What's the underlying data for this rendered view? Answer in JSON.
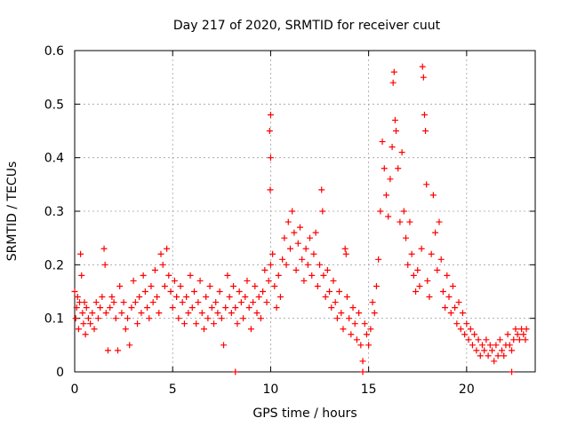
{
  "chart_data": {
    "type": "scatter",
    "title": "Day 217 of 2020, SRMTID for receiver cuut",
    "xlabel": "GPS time / hours",
    "ylabel": "SRMTID / TECUs",
    "xlim": [
      0,
      23.5
    ],
    "ylim": [
      0,
      0.6
    ],
    "xticks": [
      0,
      5,
      10,
      15,
      20
    ],
    "yticks": [
      0,
      0.1,
      0.2,
      0.3,
      0.4,
      0.5,
      0.6
    ],
    "xtick_labels": [
      "0",
      "5",
      "10",
      "15",
      "20"
    ],
    "ytick_labels": [
      "0",
      "0.1",
      "0.2",
      "0.3",
      "0.4",
      "0.5",
      "0.6"
    ],
    "grid": true,
    "marker": "+",
    "series": [
      {
        "name": "SRMTID",
        "color": "#ff0000",
        "points": [
          [
            0.0,
            0.15
          ],
          [
            0.05,
            0.1
          ],
          [
            0.1,
            0.12
          ],
          [
            0.15,
            0.14
          ],
          [
            0.2,
            0.08
          ],
          [
            0.25,
            0.13
          ],
          [
            0.3,
            0.22
          ],
          [
            0.35,
            0.18
          ],
          [
            0.4,
            0.11
          ],
          [
            0.45,
            0.09
          ],
          [
            0.5,
            0.13
          ],
          [
            0.55,
            0.07
          ],
          [
            0.6,
            0.12
          ],
          [
            0.7,
            0.1
          ],
          [
            0.8,
            0.09
          ],
          [
            0.9,
            0.11
          ],
          [
            1.0,
            0.08
          ],
          [
            1.1,
            0.13
          ],
          [
            1.2,
            0.1
          ],
          [
            1.3,
            0.12
          ],
          [
            1.4,
            0.14
          ],
          [
            1.5,
            0.23
          ],
          [
            1.55,
            0.2
          ],
          [
            1.6,
            0.11
          ],
          [
            1.7,
            0.04
          ],
          [
            1.8,
            0.12
          ],
          [
            1.9,
            0.14
          ],
          [
            2.0,
            0.13
          ],
          [
            2.1,
            0.1
          ],
          [
            2.2,
            0.04
          ],
          [
            2.3,
            0.16
          ],
          [
            2.4,
            0.11
          ],
          [
            2.5,
            0.13
          ],
          [
            2.6,
            0.08
          ],
          [
            2.7,
            0.1
          ],
          [
            2.8,
            0.05
          ],
          [
            2.9,
            0.12
          ],
          [
            3.0,
            0.17
          ],
          [
            3.1,
            0.13
          ],
          [
            3.2,
            0.09
          ],
          [
            3.3,
            0.14
          ],
          [
            3.4,
            0.11
          ],
          [
            3.5,
            0.18
          ],
          [
            3.6,
            0.15
          ],
          [
            3.7,
            0.12
          ],
          [
            3.8,
            0.1
          ],
          [
            3.9,
            0.16
          ],
          [
            4.0,
            0.13
          ],
          [
            4.1,
            0.19
          ],
          [
            4.2,
            0.14
          ],
          [
            4.3,
            0.11
          ],
          [
            4.4,
            0.22
          ],
          [
            4.5,
            0.2
          ],
          [
            4.6,
            0.16
          ],
          [
            4.7,
            0.23
          ],
          [
            4.8,
            0.18
          ],
          [
            4.9,
            0.15
          ],
          [
            5.0,
            0.12
          ],
          [
            5.1,
            0.17
          ],
          [
            5.2,
            0.14
          ],
          [
            5.3,
            0.1
          ],
          [
            5.4,
            0.16
          ],
          [
            5.5,
            0.13
          ],
          [
            5.6,
            0.09
          ],
          [
            5.7,
            0.14
          ],
          [
            5.8,
            0.11
          ],
          [
            5.9,
            0.18
          ],
          [
            6.0,
            0.12
          ],
          [
            6.1,
            0.15
          ],
          [
            6.2,
            0.09
          ],
          [
            6.3,
            0.13
          ],
          [
            6.4,
            0.17
          ],
          [
            6.5,
            0.11
          ],
          [
            6.6,
            0.08
          ],
          [
            6.7,
            0.14
          ],
          [
            6.8,
            0.1
          ],
          [
            6.9,
            0.16
          ],
          [
            7.0,
            0.12
          ],
          [
            7.1,
            0.09
          ],
          [
            7.2,
            0.13
          ],
          [
            7.3,
            0.11
          ],
          [
            7.4,
            0.15
          ],
          [
            7.5,
            0.1
          ],
          [
            7.6,
            0.05
          ],
          [
            7.7,
            0.12
          ],
          [
            7.8,
            0.18
          ],
          [
            7.9,
            0.14
          ],
          [
            8.0,
            0.11
          ],
          [
            8.1,
            0.16
          ],
          [
            8.2,
            0.12
          ],
          [
            8.3,
            0.09
          ],
          [
            8.4,
            0.15
          ],
          [
            8.5,
            0.13
          ],
          [
            8.6,
            0.1
          ],
          [
            8.7,
            0.14
          ],
          [
            8.8,
            0.17
          ],
          [
            8.9,
            0.12
          ],
          [
            9.0,
            0.08
          ],
          [
            9.1,
            0.13
          ],
          [
            9.2,
            0.16
          ],
          [
            9.3,
            0.11
          ],
          [
            9.4,
            0.14
          ],
          [
            9.5,
            0.1
          ],
          [
            9.6,
            0.15
          ],
          [
            9.7,
            0.19
          ],
          [
            9.8,
            0.13
          ],
          [
            9.9,
            0.17
          ],
          [
            10.0,
            0.2
          ],
          [
            9.95,
            0.45
          ],
          [
            10.0,
            0.48
          ],
          [
            10.0,
            0.4
          ],
          [
            9.98,
            0.34
          ],
          [
            10.1,
            0.22
          ],
          [
            10.2,
            0.16
          ],
          [
            10.3,
            0.12
          ],
          [
            10.4,
            0.18
          ],
          [
            10.5,
            0.14
          ],
          [
            10.6,
            0.21
          ],
          [
            10.7,
            0.25
          ],
          [
            10.8,
            0.2
          ],
          [
            10.9,
            0.28
          ],
          [
            11.0,
            0.23
          ],
          [
            11.1,
            0.3
          ],
          [
            11.2,
            0.26
          ],
          [
            11.3,
            0.19
          ],
          [
            11.4,
            0.24
          ],
          [
            11.5,
            0.27
          ],
          [
            11.6,
            0.21
          ],
          [
            11.7,
            0.17
          ],
          [
            11.8,
            0.23
          ],
          [
            11.9,
            0.2
          ],
          [
            12.0,
            0.25
          ],
          [
            12.1,
            0.18
          ],
          [
            12.2,
            0.22
          ],
          [
            12.3,
            0.26
          ],
          [
            12.4,
            0.16
          ],
          [
            12.5,
            0.2
          ],
          [
            12.6,
            0.34
          ],
          [
            12.65,
            0.3
          ],
          [
            12.7,
            0.18
          ],
          [
            12.8,
            0.14
          ],
          [
            12.9,
            0.19
          ],
          [
            13.0,
            0.15
          ],
          [
            13.1,
            0.12
          ],
          [
            13.2,
            0.17
          ],
          [
            13.3,
            0.13
          ],
          [
            13.4,
            0.1
          ],
          [
            13.5,
            0.15
          ],
          [
            13.6,
            0.11
          ],
          [
            13.7,
            0.08
          ],
          [
            13.8,
            0.23
          ],
          [
            13.85,
            0.22
          ],
          [
            13.9,
            0.14
          ],
          [
            14.0,
            0.1
          ],
          [
            14.1,
            0.07
          ],
          [
            14.2,
            0.12
          ],
          [
            14.3,
            0.09
          ],
          [
            14.4,
            0.06
          ],
          [
            14.5,
            0.11
          ],
          [
            14.6,
            0.05
          ],
          [
            14.7,
            0.02
          ],
          [
            14.8,
            0.09
          ],
          [
            14.9,
            0.07
          ],
          [
            15.0,
            0.05
          ],
          [
            15.1,
            0.08
          ],
          [
            15.2,
            0.13
          ],
          [
            15.3,
            0.11
          ],
          [
            15.4,
            0.16
          ],
          [
            15.5,
            0.21
          ],
          [
            15.6,
            0.3
          ],
          [
            15.7,
            0.43
          ],
          [
            15.8,
            0.38
          ],
          [
            15.9,
            0.33
          ],
          [
            16.0,
            0.29
          ],
          [
            16.1,
            0.36
          ],
          [
            16.2,
            0.42
          ],
          [
            16.25,
            0.54
          ],
          [
            16.3,
            0.56
          ],
          [
            16.35,
            0.47
          ],
          [
            16.4,
            0.45
          ],
          [
            16.5,
            0.38
          ],
          [
            16.6,
            0.28
          ],
          [
            16.7,
            0.41
          ],
          [
            16.8,
            0.3
          ],
          [
            16.9,
            0.25
          ],
          [
            17.0,
            0.2
          ],
          [
            17.1,
            0.28
          ],
          [
            17.2,
            0.22
          ],
          [
            17.3,
            0.18
          ],
          [
            17.4,
            0.15
          ],
          [
            17.5,
            0.19
          ],
          [
            17.6,
            0.16
          ],
          [
            17.7,
            0.23
          ],
          [
            17.75,
            0.57
          ],
          [
            17.8,
            0.55
          ],
          [
            17.85,
            0.48
          ],
          [
            17.9,
            0.45
          ],
          [
            17.95,
            0.35
          ],
          [
            18.0,
            0.17
          ],
          [
            18.1,
            0.14
          ],
          [
            18.2,
            0.22
          ],
          [
            18.3,
            0.33
          ],
          [
            18.4,
            0.26
          ],
          [
            18.5,
            0.19
          ],
          [
            18.6,
            0.28
          ],
          [
            18.7,
            0.21
          ],
          [
            18.8,
            0.15
          ],
          [
            18.9,
            0.12
          ],
          [
            19.0,
            0.18
          ],
          [
            19.1,
            0.14
          ],
          [
            19.2,
            0.11
          ],
          [
            19.3,
            0.16
          ],
          [
            19.4,
            0.12
          ],
          [
            19.5,
            0.09
          ],
          [
            19.6,
            0.13
          ],
          [
            19.7,
            0.08
          ],
          [
            19.8,
            0.11
          ],
          [
            19.9,
            0.07
          ],
          [
            20.0,
            0.09
          ],
          [
            20.1,
            0.06
          ],
          [
            20.2,
            0.08
          ],
          [
            20.3,
            0.05
          ],
          [
            20.4,
            0.07
          ],
          [
            20.5,
            0.04
          ],
          [
            20.6,
            0.06
          ],
          [
            20.7,
            0.03
          ],
          [
            20.8,
            0.05
          ],
          [
            20.9,
            0.04
          ],
          [
            21.0,
            0.06
          ],
          [
            21.1,
            0.03
          ],
          [
            21.2,
            0.05
          ],
          [
            21.3,
            0.04
          ],
          [
            21.4,
            0.02
          ],
          [
            21.5,
            0.05
          ],
          [
            21.6,
            0.03
          ],
          [
            21.7,
            0.06
          ],
          [
            21.8,
            0.04
          ],
          [
            21.9,
            0.03
          ],
          [
            22.0,
            0.05
          ],
          [
            22.1,
            0.07
          ],
          [
            22.2,
            0.05
          ],
          [
            22.3,
            0.04
          ],
          [
            22.4,
            0.06
          ],
          [
            22.5,
            0.08
          ],
          [
            22.6,
            0.07
          ],
          [
            22.7,
            0.06
          ],
          [
            22.8,
            0.08
          ],
          [
            22.9,
            0.07
          ],
          [
            23.0,
            0.06
          ],
          [
            23.05,
            0.08
          ],
          [
            8.2,
            0.0
          ],
          [
            14.7,
            0.0
          ],
          [
            22.3,
            0.0
          ]
        ]
      }
    ]
  }
}
